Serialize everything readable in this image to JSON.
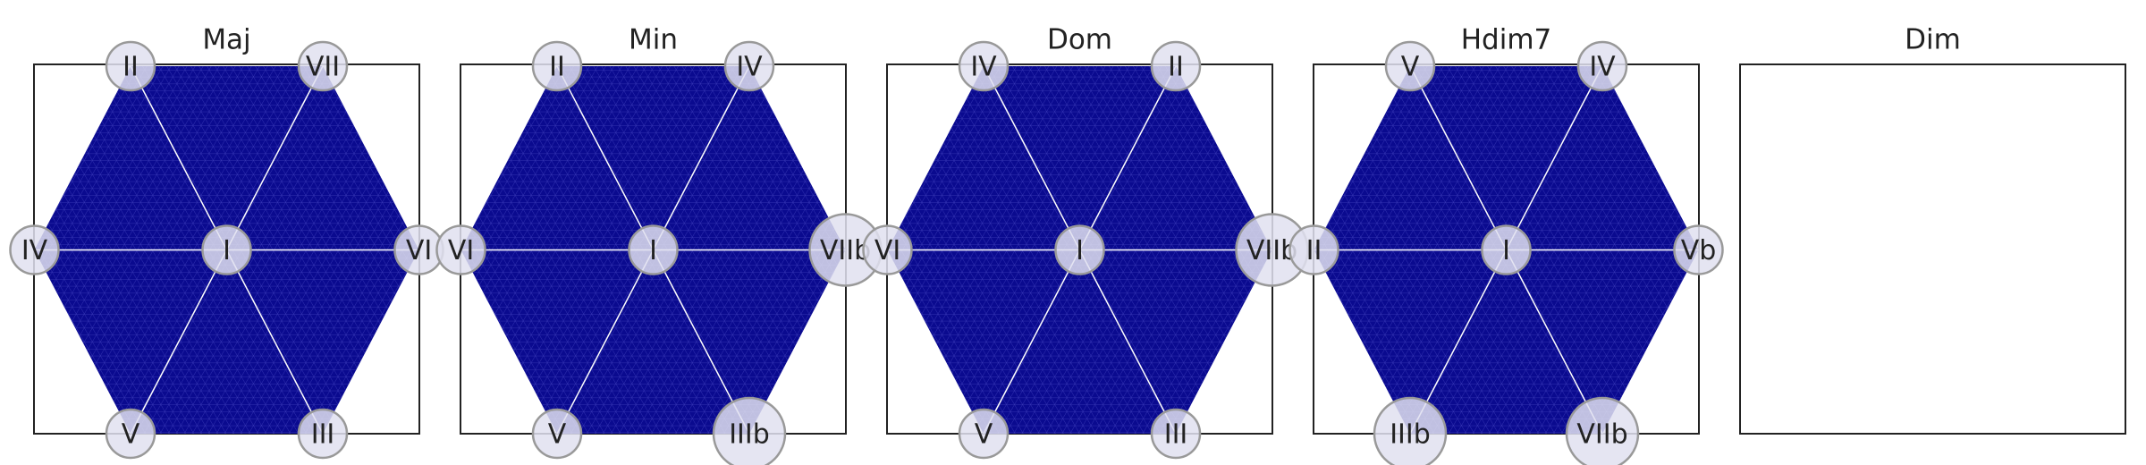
{
  "chart_data": [
    {
      "type": "hexmap",
      "title": "Maj",
      "labels": [
        "II",
        "VII",
        "IV",
        "I",
        "VI",
        "V",
        "III"
      ]
    },
    {
      "type": "hexmap",
      "title": "Min",
      "labels": [
        "II",
        "IV",
        "VI",
        "I",
        "VIIb",
        "V",
        "IIIb"
      ]
    },
    {
      "type": "hexmap",
      "title": "Dom",
      "labels": [
        "IV",
        "II",
        "VI",
        "I",
        "VIIb",
        "V",
        "III"
      ]
    },
    {
      "type": "hexmap",
      "title": "Hdim7",
      "labels": [
        "V",
        "IV",
        "II",
        "I",
        "Vb",
        "IIIb",
        "VIIb"
      ]
    },
    {
      "type": "hexmap",
      "title": "Dim",
      "labels": []
    }
  ]
}
